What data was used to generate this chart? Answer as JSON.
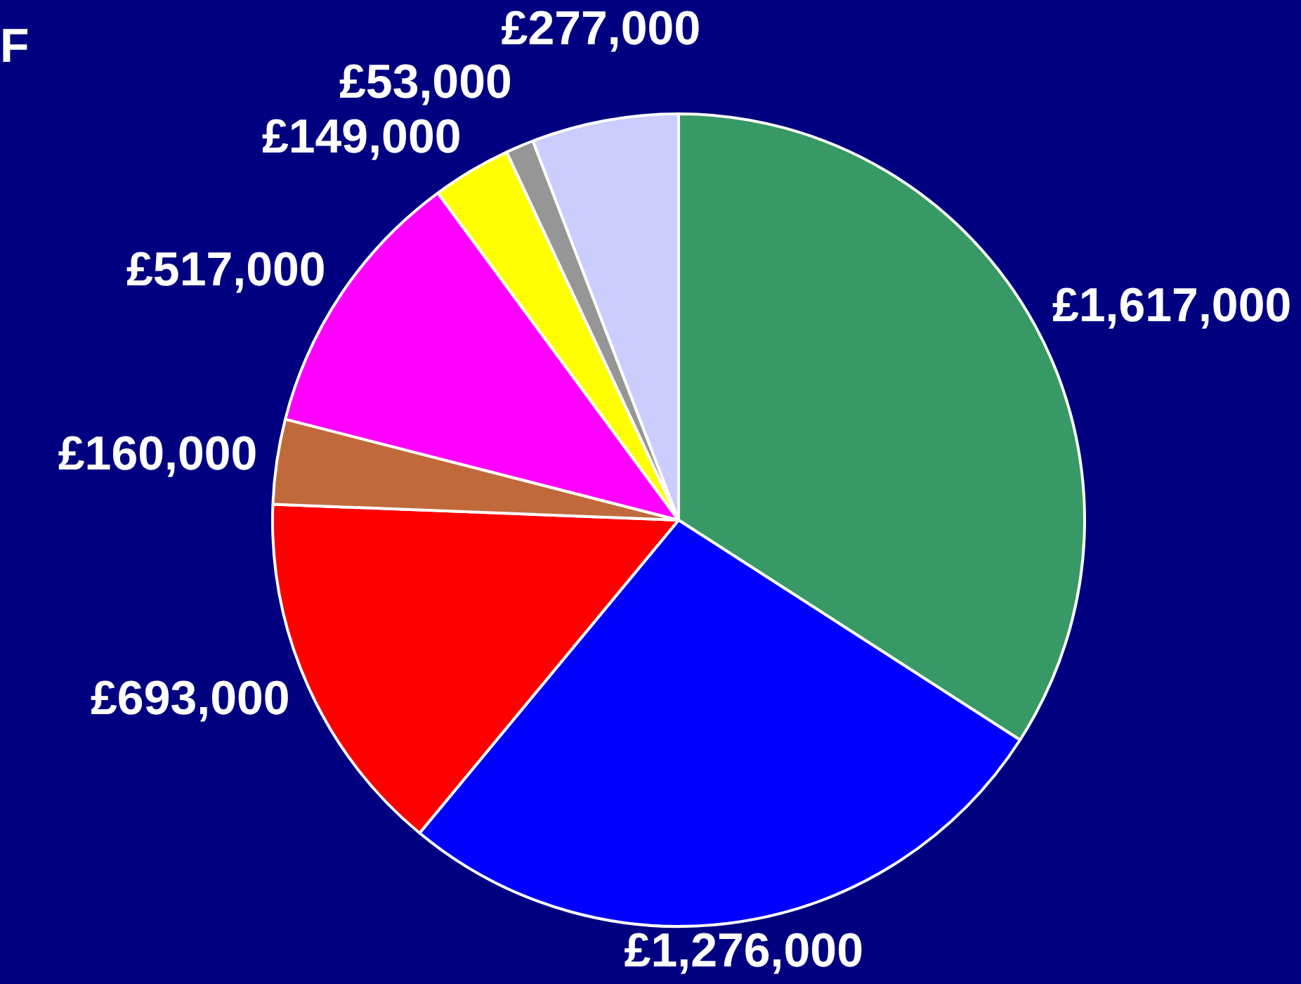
{
  "chart_data": {
    "type": "pie",
    "title": "F",
    "categories": [
      null,
      null,
      null,
      null,
      null,
      null,
      null,
      null
    ],
    "values": [
      1617000,
      1276000,
      693000,
      160000,
      517000,
      149000,
      53000,
      277000
    ],
    "colors": [
      "#379966",
      "#0000ff",
      "#ff0000",
      "#c06a3c",
      "#ff00ff",
      "#ffff00",
      "#969696",
      "#ccccff"
    ],
    "value_labels": [
      "£1,617,000",
      "£1,276,000",
      "£693,000",
      "£160,000",
      "£517,000",
      "£149,000",
      "£53,000",
      "£277,000"
    ],
    "legend": false
  }
}
